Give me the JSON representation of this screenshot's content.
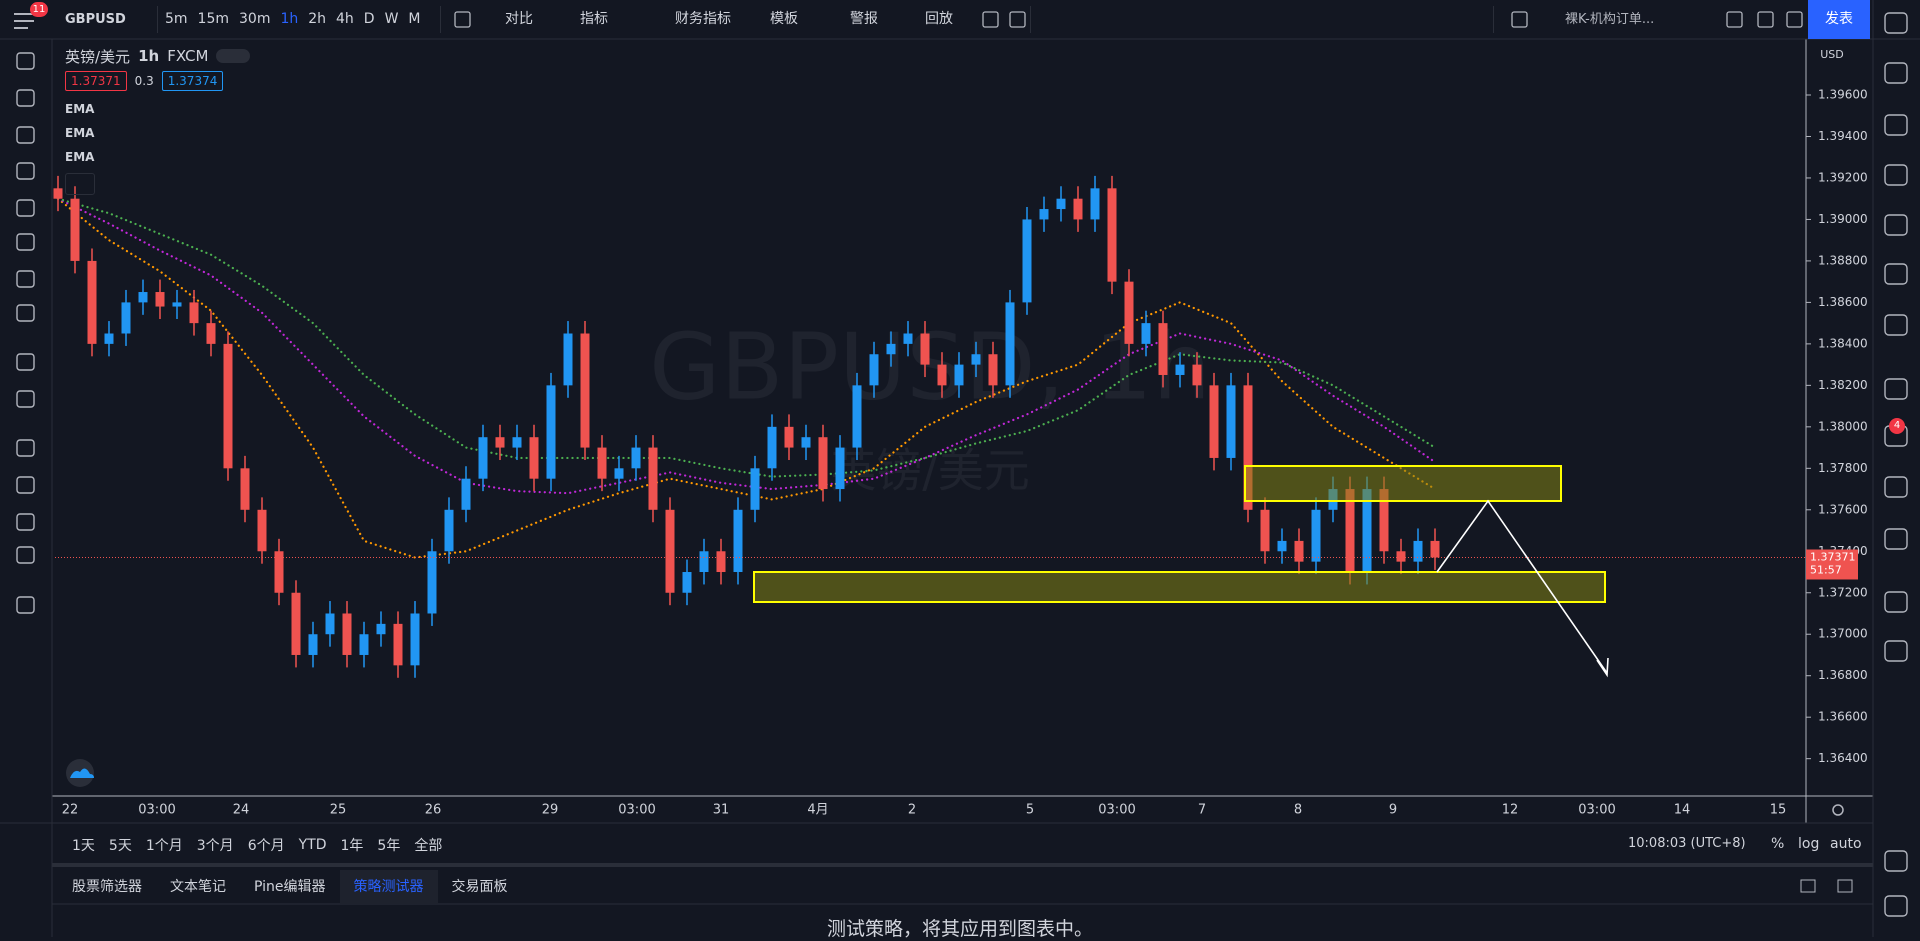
{
  "toolbar": {
    "badge": "11",
    "symbol": "GBPUSD",
    "intervals": [
      "5m",
      "15m",
      "30m",
      "1h",
      "2h",
      "4h",
      "D",
      "W",
      "M"
    ],
    "buttons": [
      "对比",
      "指标",
      "财务指标",
      "模板",
      "警报",
      "回放"
    ],
    "layout_name": "裸K-机构订单...",
    "publish": "发表"
  },
  "legend": {
    "name": "英镑/美元",
    "interval": "1h",
    "exchange": "FXCM",
    "sell": "1.37371",
    "spread": "0.3",
    "buy": "1.37374",
    "indicators": [
      "EMA",
      "EMA",
      "EMA"
    ]
  },
  "chart_data": {
    "type": "candlestick",
    "watermark": "GBPUSD, 1h",
    "watermark_sub": "英镑/美元",
    "currency": "USD",
    "countdown": "51:57",
    "xtick_labels": [
      "22",
      "03:00",
      "24",
      "25",
      "26",
      "29",
      "03:00",
      "31",
      "4月",
      "2",
      "5",
      "03:00",
      "7",
      "8",
      "9",
      "12",
      "03:00",
      "14",
      "15"
    ],
    "up_color": "#2196f3",
    "down_color": "#ef5350",
    "open": [
      1.3915,
      1.391,
      1.388,
      1.384,
      1.3845,
      1.386,
      1.3865,
      1.3858,
      1.386,
      1.385,
      1.384,
      1.378,
      1.376,
      1.374,
      1.372,
      1.369,
      1.37,
      1.371,
      1.369,
      1.37,
      1.3705,
      1.3685,
      1.371,
      1.374,
      1.376,
      1.3775,
      1.3795,
      1.379,
      1.3795,
      1.3775,
      1.382,
      1.3845,
      1.379,
      1.3775,
      1.378,
      1.379,
      1.376,
      1.372,
      1.373,
      1.374,
      1.373,
      1.376,
      1.378,
      1.38,
      1.379,
      1.3795,
      1.377,
      1.379,
      1.382,
      1.3835,
      1.384,
      1.3845,
      1.383,
      1.382,
      1.383,
      1.3835,
      1.382,
      1.386,
      1.39,
      1.3905,
      1.391,
      1.39,
      1.3915,
      1.387,
      1.384,
      1.385,
      1.3825,
      1.383,
      1.382,
      1.3785,
      1.382,
      1.376,
      1.374,
      1.3745,
      1.3735,
      1.376,
      1.377,
      1.373,
      1.377,
      1.374,
      1.3735,
      1.3745
    ],
    "high": [
      1.3921,
      1.3916,
      1.3886,
      1.3851,
      1.3866,
      1.3871,
      1.3871,
      1.3866,
      1.3866,
      1.3856,
      1.3846,
      1.3786,
      1.3766,
      1.3746,
      1.3726,
      1.3706,
      1.3716,
      1.3716,
      1.3706,
      1.3711,
      1.3711,
      1.3716,
      1.3746,
      1.3766,
      1.3781,
      1.3801,
      1.3801,
      1.3801,
      1.3801,
      1.3826,
      1.3851,
      1.3851,
      1.3796,
      1.3786,
      1.3796,
      1.3796,
      1.3766,
      1.3736,
      1.3746,
      1.3746,
      1.3766,
      1.3786,
      1.3806,
      1.3806,
      1.3801,
      1.3801,
      1.3796,
      1.3826,
      1.3841,
      1.3846,
      1.3851,
      1.3851,
      1.3836,
      1.3836,
      1.3841,
      1.3841,
      1.3866,
      1.3906,
      1.3911,
      1.3916,
      1.3916,
      1.3921,
      1.3921,
      1.3876,
      1.3856,
      1.3856,
      1.3836,
      1.3836,
      1.3826,
      1.3826,
      1.3826,
      1.3766,
      1.3751,
      1.3751,
      1.3766,
      1.3776,
      1.3776,
      1.3776,
      1.3776,
      1.3746,
      1.3751,
      1.3751
    ],
    "low": [
      1.3904,
      1.3874,
      1.3834,
      1.3834,
      1.3839,
      1.3854,
      1.3852,
      1.3852,
      1.3844,
      1.3834,
      1.3774,
      1.3754,
      1.3734,
      1.3714,
      1.3684,
      1.3684,
      1.3694,
      1.3684,
      1.3684,
      1.3694,
      1.3679,
      1.3679,
      1.3704,
      1.3734,
      1.3754,
      1.3769,
      1.3784,
      1.3784,
      1.3769,
      1.3769,
      1.3814,
      1.3784,
      1.3769,
      1.3769,
      1.3774,
      1.3754,
      1.3714,
      1.3714,
      1.3724,
      1.3724,
      1.3724,
      1.3754,
      1.3774,
      1.3784,
      1.3784,
      1.3764,
      1.3764,
      1.3784,
      1.3814,
      1.3829,
      1.3834,
      1.3824,
      1.3814,
      1.3814,
      1.3824,
      1.3814,
      1.3814,
      1.3854,
      1.3894,
      1.3899,
      1.3894,
      1.3894,
      1.3864,
      1.3834,
      1.3834,
      1.3819,
      1.3819,
      1.3814,
      1.3779,
      1.3779,
      1.3754,
      1.3734,
      1.3734,
      1.3729,
      1.3729,
      1.3754,
      1.3724,
      1.3724,
      1.3734,
      1.3729,
      1.3729,
      1.3731
    ],
    "close": [
      1.391,
      1.388,
      1.384,
      1.3845,
      1.386,
      1.3865,
      1.3858,
      1.386,
      1.385,
      1.384,
      1.378,
      1.376,
      1.374,
      1.372,
      1.369,
      1.37,
      1.371,
      1.369,
      1.37,
      1.3705,
      1.3685,
      1.371,
      1.374,
      1.376,
      1.3775,
      1.3795,
      1.379,
      1.3795,
      1.3775,
      1.382,
      1.3845,
      1.379,
      1.3775,
      1.378,
      1.379,
      1.376,
      1.372,
      1.373,
      1.374,
      1.373,
      1.376,
      1.378,
      1.38,
      1.379,
      1.3795,
      1.377,
      1.379,
      1.382,
      1.3835,
      1.384,
      1.3845,
      1.383,
      1.382,
      1.383,
      1.3835,
      1.382,
      1.386,
      1.39,
      1.3905,
      1.391,
      1.39,
      1.3915,
      1.387,
      1.384,
      1.385,
      1.3825,
      1.383,
      1.382,
      1.3785,
      1.382,
      1.376,
      1.374,
      1.3745,
      1.3735,
      1.376,
      1.377,
      1.373,
      1.377,
      1.374,
      1.3735,
      1.3745,
      1.3737
    ],
    "series": [
      {
        "name": "EMA",
        "color": "#ff9800",
        "values": [
          1.391,
          1.389,
          1.3875,
          1.3856,
          1.3825,
          1.379,
          1.3745,
          1.3737,
          1.374,
          1.375,
          1.376,
          1.3768,
          1.3775,
          1.377,
          1.3765,
          1.377,
          1.378,
          1.38,
          1.3812,
          1.3822,
          1.383,
          1.385,
          1.386,
          1.385,
          1.3822,
          1.38,
          1.3785,
          1.377
        ]
      },
      {
        "name": "EMA",
        "color": "#c028d8",
        "values": [
          1.391,
          1.3898,
          1.3885,
          1.3873,
          1.3855,
          1.383,
          1.3805,
          1.3786,
          1.3773,
          1.3769,
          1.3768,
          1.3773,
          1.3778,
          1.3773,
          1.377,
          1.3772,
          1.3775,
          1.3785,
          1.3796,
          1.3806,
          1.3818,
          1.3835,
          1.3845,
          1.384,
          1.3832,
          1.3815,
          1.38,
          1.3783
        ]
      },
      {
        "name": "EMA",
        "color": "#4caf50",
        "values": [
          1.391,
          1.3903,
          1.3893,
          1.3883,
          1.3868,
          1.385,
          1.3825,
          1.3806,
          1.379,
          1.3785,
          1.3785,
          1.3785,
          1.3785,
          1.378,
          1.3776,
          1.3777,
          1.3779,
          1.3785,
          1.3792,
          1.3798,
          1.3808,
          1.3825,
          1.3835,
          1.3832,
          1.3831,
          1.382,
          1.3805,
          1.379
        ]
      }
    ],
    "ylim": [
      1.3622,
      1.3987
    ],
    "yticks": [
      {
        "value": 1.364,
        "label": "1.36400"
      },
      {
        "value": 1.366,
        "label": "1.36600"
      },
      {
        "value": 1.368,
        "label": "1.36800"
      },
      {
        "value": 1.37,
        "label": "1.37000"
      },
      {
        "value": 1.372,
        "label": "1.37200"
      },
      {
        "value": 1.374,
        "label": "1.37400"
      },
      {
        "value": 1.376,
        "label": "1.37600"
      },
      {
        "value": 1.378,
        "label": "1.37800"
      },
      {
        "value": 1.38,
        "label": "1.38000"
      },
      {
        "value": 1.382,
        "label": "1.38200"
      },
      {
        "value": 1.384,
        "label": "1.38400"
      },
      {
        "value": 1.386,
        "label": "1.38600"
      },
      {
        "value": 1.388,
        "label": "1.38800"
      },
      {
        "value": 1.39,
        "label": "1.39000"
      },
      {
        "value": 1.392,
        "label": "1.39200"
      },
      {
        "value": 1.394,
        "label": "1.39400"
      },
      {
        "value": 1.396,
        "label": "1.39600"
      }
    ],
    "grid": false
  },
  "bottom_bar": {
    "ranges": [
      "1天",
      "5天",
      "1个月",
      "3个月",
      "6个月",
      "YTD",
      "1年",
      "5年",
      "全部"
    ],
    "clock": "10:08:03 (UTC+8)",
    "percent": "%",
    "log": "log",
    "auto": "auto"
  },
  "panel": {
    "tabs": [
      "股票筛选器",
      "文本笔记",
      "Pine编辑器",
      "策略测试器",
      "交易面板"
    ],
    "message": "测试策略，将其应用到图表中。"
  },
  "sidebar_badge": "4"
}
